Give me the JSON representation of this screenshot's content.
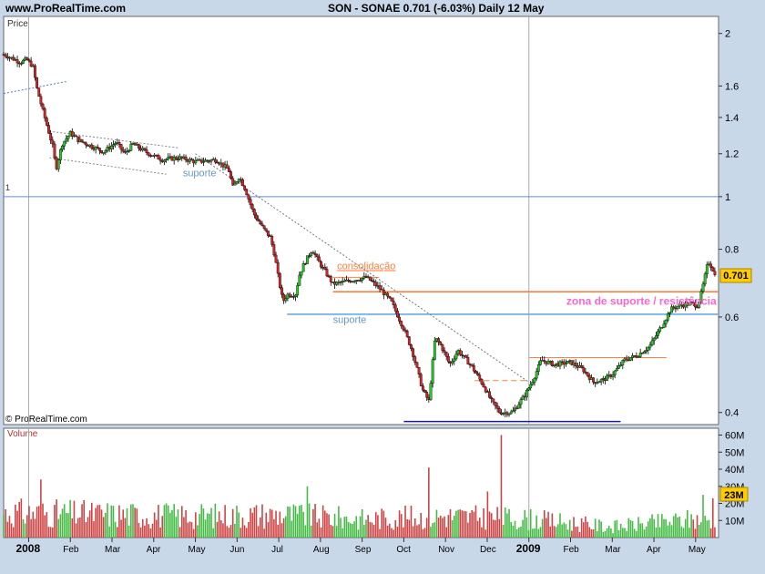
{
  "header": {
    "site": "www.ProRealTime.com",
    "title": "SON - SONAE   0.701 (-6.03%)   Daily  12 May"
  },
  "chart_data": [
    {
      "type": "candlestick",
      "panel": "price",
      "title": "SON - SONAE",
      "last_price": "0.701",
      "change": "-6.03%",
      "period": "Daily",
      "date": "12 May",
      "ylabel": "Price",
      "y_scale": "log",
      "ylim": [
        0.38,
        2.15
      ],
      "y_ticks": [
        "2",
        "1.6",
        "1.4",
        "1.2",
        "1",
        "0.8",
        "0.6",
        "0.4"
      ],
      "y_tick_values": [
        2,
        1.6,
        1.4,
        1.2,
        1,
        0.8,
        0.6,
        0.4
      ],
      "x_labels": [
        "2008",
        "Feb",
        "Mar",
        "Apr",
        "May",
        "Jun",
        "Jul",
        "Aug",
        "Sep",
        "Oct",
        "Nov",
        "Dec",
        "2009",
        "Feb",
        "Mar",
        "Apr",
        "May"
      ],
      "x_label_months": [
        0,
        1,
        2,
        3,
        4,
        5,
        6,
        7,
        8,
        9,
        10,
        11,
        12,
        13,
        14,
        15,
        16
      ],
      "x_range_months": [
        -0.6,
        16.55
      ],
      "left_marker": "1",
      "price_label": "0.701",
      "watermark": "© ProRealTime.com",
      "annotations": [
        {
          "text": "suporte",
          "color": "#6699cc",
          "at_month": 3.7,
          "at_price": 1.09
        },
        {
          "text": "consolidação",
          "color": "#ff8040",
          "at_month": 7.4,
          "at_price": 0.735
        },
        {
          "text": "suporte",
          "color": "#6699cc",
          "at_month": 7.3,
          "at_price": 0.585
        },
        {
          "text": "zona de suporte / resistência",
          "color": "#ff66cc",
          "at_month": 12.9,
          "at_price": 0.632
        }
      ],
      "levels": [
        {
          "name": "resistance-1",
          "price": 1.0,
          "from": -0.6,
          "to": 16.55,
          "color": "#6688ee",
          "width": 1
        },
        {
          "name": "support-low",
          "price": 0.385,
          "from": 9.0,
          "to": 14.2,
          "color": "#1a1a99",
          "width": 1.6
        },
        {
          "name": "support-blue",
          "price": 0.607,
          "from": 6.2,
          "to": 16.55,
          "color": "#66aaee",
          "width": 1.6
        },
        {
          "name": "zone-orange",
          "price": 0.668,
          "from": 7.3,
          "to": 16.55,
          "color": "#ff8040",
          "width": 1.6
        },
        {
          "name": "consol-top",
          "price": 0.71,
          "from": 7.3,
          "to": 8.4,
          "color": "#ff8040",
          "width": 1
        },
        {
          "name": "range-top",
          "price": 0.505,
          "from": 12.0,
          "to": 15.3,
          "color": "#ff8040",
          "width": 1
        },
        {
          "name": "range-dash",
          "price": 0.458,
          "from": 10.7,
          "to": 12.0,
          "color": "#ff8040",
          "width": 1,
          "dash": true
        }
      ],
      "trendlines": [
        {
          "name": "trend-early",
          "from": [
            -0.6,
            1.55
          ],
          "to": [
            0.9,
            1.63
          ],
          "color": "#5577cc"
        },
        {
          "name": "trend-upper",
          "from": [
            0.5,
            1.32
          ],
          "to": [
            3.6,
            1.23
          ],
          "color": "#888888"
        },
        {
          "name": "trend-lower",
          "from": [
            0.5,
            1.18
          ],
          "to": [
            3.3,
            1.1
          ],
          "color": "#888888"
        },
        {
          "name": "trend-down",
          "from": [
            4.0,
            1.2
          ],
          "to": [
            12.0,
            0.455
          ],
          "color": "#777777"
        }
      ],
      "price_path": [
        [
          -0.6,
          1.83
        ],
        [
          -0.4,
          1.8
        ],
        [
          -0.2,
          1.77
        ],
        [
          -0.05,
          1.79
        ],
        [
          0.1,
          1.74
        ],
        [
          0.2,
          1.58
        ],
        [
          0.35,
          1.43
        ],
        [
          0.5,
          1.3
        ],
        [
          0.6,
          1.22
        ],
        [
          0.65,
          1.12
        ],
        [
          0.8,
          1.25
        ],
        [
          1.0,
          1.31
        ],
        [
          1.2,
          1.27
        ],
        [
          1.5,
          1.24
        ],
        [
          1.8,
          1.21
        ],
        [
          2.1,
          1.26
        ],
        [
          2.3,
          1.2
        ],
        [
          2.5,
          1.25
        ],
        [
          2.8,
          1.21
        ],
        [
          3.2,
          1.17
        ],
        [
          3.6,
          1.18
        ],
        [
          4.0,
          1.16
        ],
        [
          4.5,
          1.17
        ],
        [
          4.8,
          1.12
        ],
        [
          4.9,
          1.04
        ],
        [
          5.05,
          1.09
        ],
        [
          5.2,
          1.03
        ],
        [
          5.4,
          0.93
        ],
        [
          5.6,
          0.88
        ],
        [
          5.8,
          0.84
        ],
        [
          5.9,
          0.78
        ],
        [
          6.0,
          0.7
        ],
        [
          6.1,
          0.64
        ],
        [
          6.2,
          0.66
        ],
        [
          6.4,
          0.66
        ],
        [
          6.5,
          0.72
        ],
        [
          6.6,
          0.75
        ],
        [
          6.8,
          0.8
        ],
        [
          6.95,
          0.76
        ],
        [
          7.1,
          0.73
        ],
        [
          7.3,
          0.69
        ],
        [
          7.7,
          0.7
        ],
        [
          8.1,
          0.71
        ],
        [
          8.4,
          0.68
        ],
        [
          8.7,
          0.64
        ],
        [
          9.0,
          0.57
        ],
        [
          9.2,
          0.52
        ],
        [
          9.45,
          0.44
        ],
        [
          9.6,
          0.42
        ],
        [
          9.75,
          0.55
        ],
        [
          9.9,
          0.53
        ],
        [
          10.1,
          0.49
        ],
        [
          10.3,
          0.52
        ],
        [
          10.6,
          0.49
        ],
        [
          10.9,
          0.45
        ],
        [
          11.1,
          0.42
        ],
        [
          11.3,
          0.4
        ],
        [
          11.6,
          0.4
        ],
        [
          11.9,
          0.43
        ],
        [
          12.1,
          0.46
        ],
        [
          12.3,
          0.5
        ],
        [
          12.6,
          0.49
        ],
        [
          13.0,
          0.495
        ],
        [
          13.3,
          0.48
        ],
        [
          13.55,
          0.455
        ],
        [
          13.8,
          0.46
        ],
        [
          14.0,
          0.47
        ],
        [
          14.3,
          0.5
        ],
        [
          14.6,
          0.51
        ],
        [
          14.9,
          0.53
        ],
        [
          15.2,
          0.58
        ],
        [
          15.4,
          0.62
        ],
        [
          15.6,
          0.63
        ],
        [
          15.9,
          0.635
        ],
        [
          16.05,
          0.63
        ],
        [
          16.15,
          0.67
        ],
        [
          16.3,
          0.76
        ],
        [
          16.4,
          0.74
        ],
        [
          16.5,
          0.701
        ]
      ]
    },
    {
      "type": "bar",
      "panel": "volume",
      "ylabel": "Volume",
      "ylim": [
        0,
        64000000
      ],
      "y_ticks": [
        "60M",
        "50M",
        "40M",
        "30M",
        "20M",
        "10M"
      ],
      "y_tick_values": [
        60000000,
        50000000,
        40000000,
        30000000,
        20000000,
        10000000
      ],
      "last_volume_label": "23M",
      "last_volume": 23000000,
      "volume_spikes": [
        {
          "month": 0.3,
          "value": 34000000
        },
        {
          "month": 6.7,
          "value": 30000000
        },
        {
          "month": 9.6,
          "value": 41000000
        },
        {
          "month": 11.35,
          "value": 60000000
        },
        {
          "month": 11.0,
          "value": 27000000
        },
        {
          "month": 16.2,
          "value": 25000000
        },
        {
          "month": 16.4,
          "value": 23000000
        }
      ],
      "typical_volume": [
        [
          0,
          16000000
        ],
        [
          2,
          15000000
        ],
        [
          4,
          14000000
        ],
        [
          6,
          15000000
        ],
        [
          8,
          12000000
        ],
        [
          10,
          14000000
        ],
        [
          12,
          12000000
        ],
        [
          14,
          7000000
        ],
        [
          16,
          12000000
        ]
      ]
    }
  ]
}
